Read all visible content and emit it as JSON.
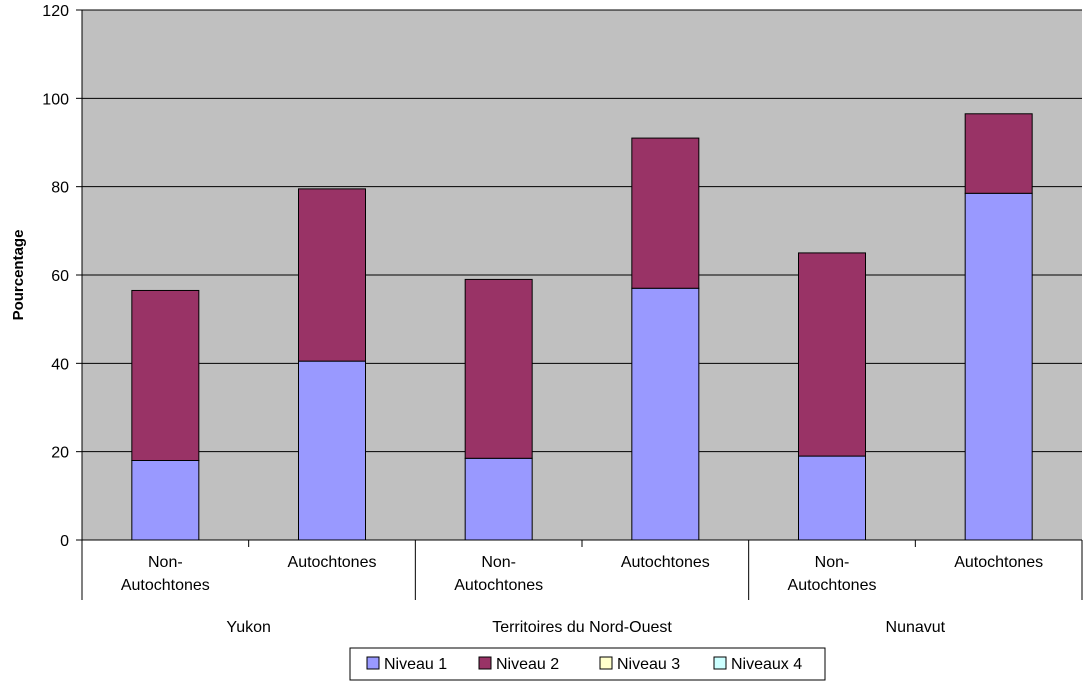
{
  "chart_data": {
    "type": "bar",
    "stacked": true,
    "title": "",
    "ylabel": "Pourcentage",
    "ylim": [
      0,
      120
    ],
    "yticks": [
      0,
      20,
      40,
      60,
      80,
      100,
      120
    ],
    "categories": [
      {
        "label_lines": [
          "Non-",
          "Autochtones"
        ],
        "group": "Yukon"
      },
      {
        "label_lines": [
          "Autochtones"
        ],
        "group": "Yukon"
      },
      {
        "label_lines": [
          "Non-",
          "Autochtones"
        ],
        "group": "Territoires du Nord-Ouest"
      },
      {
        "label_lines": [
          "Autochtones"
        ],
        "group": "Territoires du Nord-Ouest"
      },
      {
        "label_lines": [
          "Non-",
          "Autochtones"
        ],
        "group": "Nunavut"
      },
      {
        "label_lines": [
          "Autochtones"
        ],
        "group": "Nunavut"
      }
    ],
    "groups": [
      "Yukon",
      "Territoires du Nord-Ouest",
      "Nunavut"
    ],
    "series": [
      {
        "name": "Niveau 1",
        "color": "#9999ff",
        "values": [
          18,
          40.5,
          18.5,
          57,
          19,
          78.5
        ]
      },
      {
        "name": "Niveau 2",
        "color": "#993366",
        "values": [
          38.5,
          39,
          40.5,
          34,
          46,
          18
        ]
      },
      {
        "name": "Niveau 3",
        "color": "#ffffcc",
        "values": [
          0,
          0,
          0,
          0,
          0,
          0
        ]
      },
      {
        "name": "Niveaux 4",
        "color": "#ccffff",
        "values": [
          0,
          0,
          0,
          0,
          0,
          0
        ]
      }
    ],
    "plot_background": "#c0c0c0",
    "grid": true,
    "legend_position": "bottom"
  }
}
